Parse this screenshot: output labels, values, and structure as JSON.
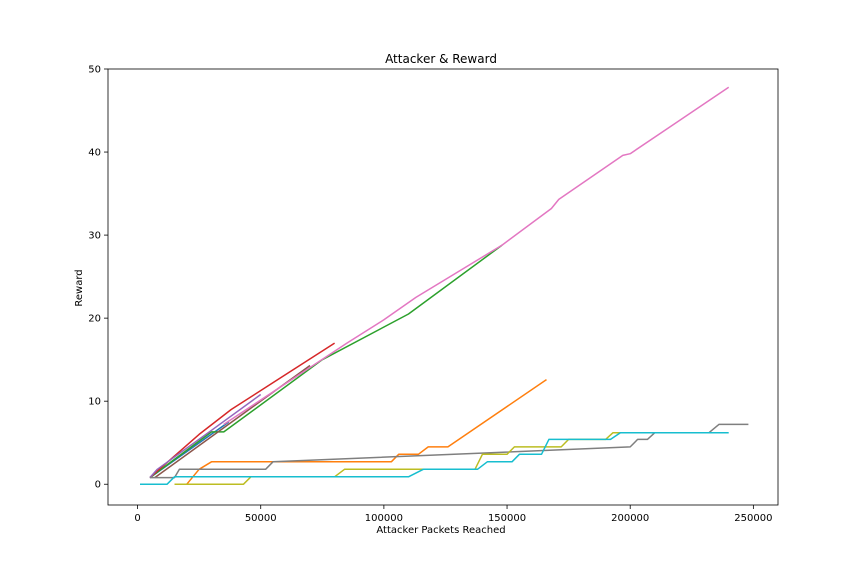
{
  "chart_data": {
    "type": "line",
    "title": "Attacker & Reward",
    "xlabel": "Attacker Packets Reached",
    "ylabel": "Reward",
    "xlim": [
      -12000,
      260000
    ],
    "ylim": [
      -2.5,
      50
    ],
    "xticks": [
      0,
      50000,
      100000,
      150000,
      200000,
      250000
    ],
    "xtick_labels": [
      "0",
      "50000",
      "100000",
      "150000",
      "200000",
      "250000"
    ],
    "yticks": [
      0,
      10,
      20,
      30,
      40,
      50
    ],
    "ytick_labels": [
      "0",
      "10",
      "20",
      "30",
      "40",
      "50"
    ],
    "grid": false,
    "legend": "none",
    "series": [
      {
        "color": "#1f77b4",
        "x": [
          5000,
          37000
        ],
        "y": [
          0.8,
          7.5
        ]
      },
      {
        "color": "#ff7f0e",
        "x": [
          15000,
          20000,
          25000,
          30000,
          103000,
          106000,
          114000,
          118000,
          126000,
          166000
        ],
        "y": [
          0,
          0,
          1.8,
          2.7,
          2.7,
          3.6,
          3.6,
          4.5,
          4.5,
          12.6
        ]
      },
      {
        "color": "#2ca02c",
        "x": [
          5000,
          30000,
          35000,
          75000,
          110000,
          148000
        ],
        "y": [
          0.8,
          6.3,
          6.3,
          15.0,
          20.5,
          28.8
        ]
      },
      {
        "color": "#d62728",
        "x": [
          5000,
          25000,
          38000,
          80000
        ],
        "y": [
          0.8,
          6.0,
          9.0,
          17.0
        ]
      },
      {
        "color": "#9467bd",
        "x": [
          5000,
          8000,
          30000,
          50000
        ],
        "y": [
          0.8,
          1.8,
          6.5,
          10.8
        ]
      },
      {
        "color": "#8c564b",
        "x": [
          7000,
          70000
        ],
        "y": [
          0.8,
          14.3
        ]
      },
      {
        "color": "#e377c2",
        "x": [
          35000,
          85000,
          100000,
          113000,
          148000,
          168000,
          171000,
          197000,
          200000,
          240000
        ],
        "y": [
          7.2,
          17.0,
          19.8,
          22.5,
          28.8,
          33.2,
          34.3,
          39.6,
          39.8,
          47.8
        ]
      },
      {
        "color": "#7f7f7f",
        "x": [
          5000,
          15000,
          17000,
          52000,
          55000,
          200000,
          203000,
          207000,
          210000,
          232000,
          236000,
          248000
        ],
        "y": [
          0.8,
          0.8,
          1.8,
          1.8,
          2.7,
          4.5,
          5.4,
          5.4,
          6.2,
          6.2,
          7.2,
          7.2
        ]
      },
      {
        "color": "#bcbd22",
        "x": [
          15000,
          43000,
          46000,
          80000,
          84000,
          113000,
          116000,
          137000,
          140000,
          150000,
          153000,
          172000,
          175000,
          190000,
          193000,
          200000
        ],
        "y": [
          0,
          0,
          0.9,
          0.9,
          1.8,
          1.8,
          1.8,
          1.8,
          3.6,
          3.6,
          4.5,
          4.5,
          5.4,
          5.4,
          6.2,
          6.2
        ]
      },
      {
        "color": "#17becf",
        "x": [
          1000,
          12000,
          15000,
          110000,
          116000,
          138000,
          142000,
          152000,
          155000,
          164000,
          167000,
          192000,
          196000,
          240000
        ],
        "y": [
          0,
          0,
          0.9,
          0.9,
          1.8,
          1.8,
          2.7,
          2.7,
          3.6,
          3.6,
          5.4,
          5.4,
          6.2,
          6.2
        ]
      }
    ]
  }
}
